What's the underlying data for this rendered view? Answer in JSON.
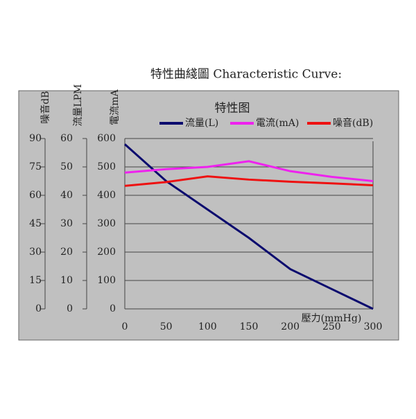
{
  "chart_data": {
    "type": "line",
    "title": "特性曲綫圖 Characteristic Curve:",
    "subtitle": "特性图",
    "x_label": "壓力(mmHg)",
    "y_label": "電流mA",
    "y2_label": "流量LPM",
    "y3_label": "噪音dB",
    "x": [
      0,
      50,
      100,
      150,
      200,
      250,
      300
    ],
    "xlim": [
      0,
      300
    ],
    "xticks": [
      0,
      50,
      100,
      150,
      200,
      250,
      300
    ],
    "ylim": [
      0,
      600
    ],
    "yticks": [
      0,
      100,
      200,
      300,
      400,
      500,
      600
    ],
    "y2lim": [
      0,
      60
    ],
    "y2ticks": [
      0,
      10,
      20,
      30,
      40,
      50,
      60
    ],
    "y3lim": [
      0,
      90
    ],
    "y3ticks": [
      0,
      15,
      30,
      45,
      60,
      75,
      90
    ],
    "grid": true,
    "series": [
      {
        "name": "流量(L)",
        "color": "#0a0a6e",
        "axis": "y2",
        "values": [
          58,
          45,
          35,
          25,
          14,
          7,
          0
        ]
      },
      {
        "name": "電流(mA)",
        "color": "#ee22ee",
        "axis": "y",
        "values": [
          480,
          492,
          500,
          520,
          485,
          465,
          450
        ]
      },
      {
        "name": "噪音(dB)",
        "color": "#ee1111",
        "axis": "y3",
        "values": [
          65,
          67,
          70,
          68.3,
          67.2,
          66.3,
          65.3
        ]
      }
    ]
  }
}
